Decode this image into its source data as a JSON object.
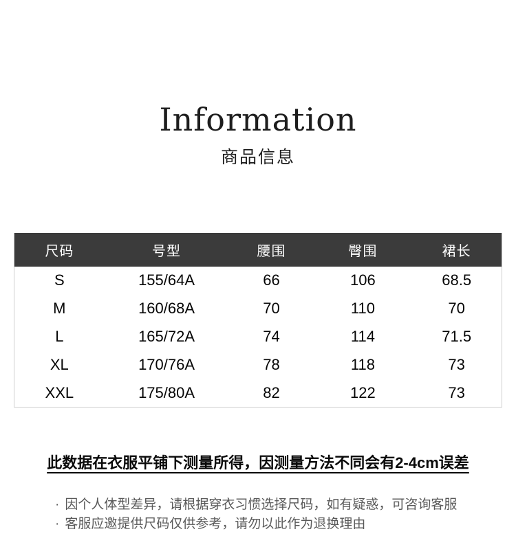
{
  "page": {
    "title": "Information",
    "subtitle": "商品信息"
  },
  "size_table": {
    "columns": [
      "尺码",
      "号型",
      "腰围",
      "臀围",
      "裙长"
    ],
    "rows": [
      [
        "S",
        "155/64A",
        "66",
        "106",
        "68.5"
      ],
      [
        "M",
        "160/68A",
        "70",
        "110",
        "70"
      ],
      [
        "L",
        "165/72A",
        "74",
        "114",
        "71.5"
      ],
      [
        "XL",
        "170/76A",
        "78",
        "118",
        "73"
      ],
      [
        "XXL",
        "175/80A",
        "82",
        "122",
        "73"
      ]
    ]
  },
  "notes": {
    "disclaimer": "此数据在衣服平铺下测量所得，因测量方法不同会有2-4cm误差",
    "bullet_marker": "·",
    "bullets": [
      "因个人体型差异，请根据穿衣习惯选择尺码，如有疑惑，可咨询客服",
      "客服应邀提供尺码仅供参考，请勿以此作为退换理由"
    ]
  },
  "colors": {
    "table_header_bg": "#3b3b3b",
    "table_header_text": "#ffffff",
    "table_border": "#cccccc",
    "note_text": "#595959",
    "text_primary": "#1d1d1d"
  }
}
